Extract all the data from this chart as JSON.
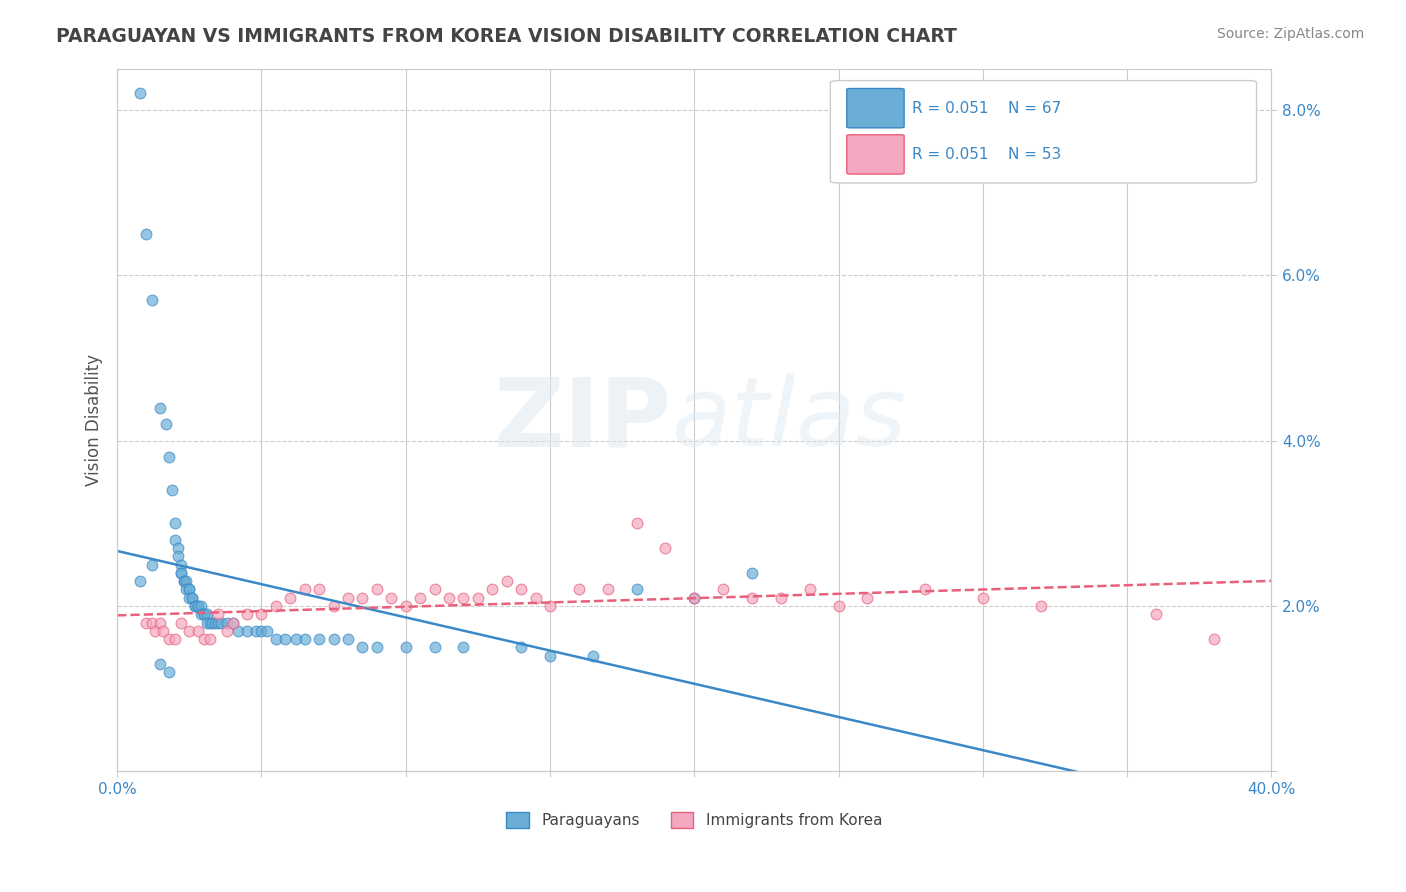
{
  "title": "PARAGUAYAN VS IMMIGRANTS FROM KOREA VISION DISABILITY CORRELATION CHART",
  "source": "Source: ZipAtlas.com",
  "ylabel": "Vision Disability",
  "xlim": [
    0.0,
    0.4
  ],
  "ylim": [
    0.0,
    0.085
  ],
  "xticks": [
    0.0,
    0.05,
    0.1,
    0.15,
    0.2,
    0.25,
    0.3,
    0.35,
    0.4
  ],
  "yticks_right": [
    0.0,
    0.02,
    0.04,
    0.06,
    0.08
  ],
  "blue_color": "#6aaed6",
  "pink_color": "#f4a8c0",
  "blue_line_color": "#3a88c8",
  "pink_line_color": "#e8607a",
  "legend_R1": "R = 0.051",
  "legend_N1": "N = 67",
  "legend_R2": "R = 0.051",
  "legend_N2": "N = 53",
  "blue_scatter_x": [
    0.008,
    0.01,
    0.012,
    0.015,
    0.017,
    0.018,
    0.019,
    0.02,
    0.02,
    0.021,
    0.021,
    0.022,
    0.022,
    0.022,
    0.023,
    0.023,
    0.024,
    0.024,
    0.025,
    0.025,
    0.025,
    0.026,
    0.026,
    0.027,
    0.027,
    0.028,
    0.028,
    0.029,
    0.029,
    0.03,
    0.03,
    0.031,
    0.031,
    0.032,
    0.033,
    0.034,
    0.035,
    0.036,
    0.038,
    0.04,
    0.042,
    0.045,
    0.048,
    0.05,
    0.052,
    0.055,
    0.058,
    0.062,
    0.065,
    0.07,
    0.075,
    0.08,
    0.085,
    0.09,
    0.1,
    0.11,
    0.12,
    0.14,
    0.15,
    0.165,
    0.012,
    0.008,
    0.18,
    0.2,
    0.22,
    0.015,
    0.018
  ],
  "blue_scatter_y": [
    0.082,
    0.065,
    0.057,
    0.044,
    0.042,
    0.038,
    0.034,
    0.03,
    0.028,
    0.027,
    0.026,
    0.025,
    0.024,
    0.024,
    0.023,
    0.023,
    0.023,
    0.022,
    0.022,
    0.022,
    0.021,
    0.021,
    0.021,
    0.02,
    0.02,
    0.02,
    0.02,
    0.02,
    0.019,
    0.019,
    0.019,
    0.019,
    0.018,
    0.018,
    0.018,
    0.018,
    0.018,
    0.018,
    0.018,
    0.018,
    0.017,
    0.017,
    0.017,
    0.017,
    0.017,
    0.016,
    0.016,
    0.016,
    0.016,
    0.016,
    0.016,
    0.016,
    0.015,
    0.015,
    0.015,
    0.015,
    0.015,
    0.015,
    0.014,
    0.014,
    0.025,
    0.023,
    0.022,
    0.021,
    0.024,
    0.013,
    0.012
  ],
  "pink_scatter_x": [
    0.01,
    0.012,
    0.013,
    0.015,
    0.016,
    0.018,
    0.02,
    0.022,
    0.025,
    0.028,
    0.03,
    0.032,
    0.035,
    0.038,
    0.04,
    0.045,
    0.05,
    0.055,
    0.06,
    0.065,
    0.07,
    0.075,
    0.08,
    0.085,
    0.09,
    0.095,
    0.1,
    0.105,
    0.11,
    0.115,
    0.12,
    0.125,
    0.13,
    0.135,
    0.14,
    0.145,
    0.15,
    0.16,
    0.17,
    0.18,
    0.19,
    0.2,
    0.21,
    0.22,
    0.23,
    0.24,
    0.25,
    0.26,
    0.28,
    0.3,
    0.32,
    0.36,
    0.38
  ],
  "pink_scatter_y": [
    0.018,
    0.018,
    0.017,
    0.018,
    0.017,
    0.016,
    0.016,
    0.018,
    0.017,
    0.017,
    0.016,
    0.016,
    0.019,
    0.017,
    0.018,
    0.019,
    0.019,
    0.02,
    0.021,
    0.022,
    0.022,
    0.02,
    0.021,
    0.021,
    0.022,
    0.021,
    0.02,
    0.021,
    0.022,
    0.021,
    0.021,
    0.021,
    0.022,
    0.023,
    0.022,
    0.021,
    0.02,
    0.022,
    0.022,
    0.03,
    0.027,
    0.021,
    0.022,
    0.021,
    0.021,
    0.022,
    0.02,
    0.021,
    0.022,
    0.021,
    0.02,
    0.019,
    0.016
  ]
}
